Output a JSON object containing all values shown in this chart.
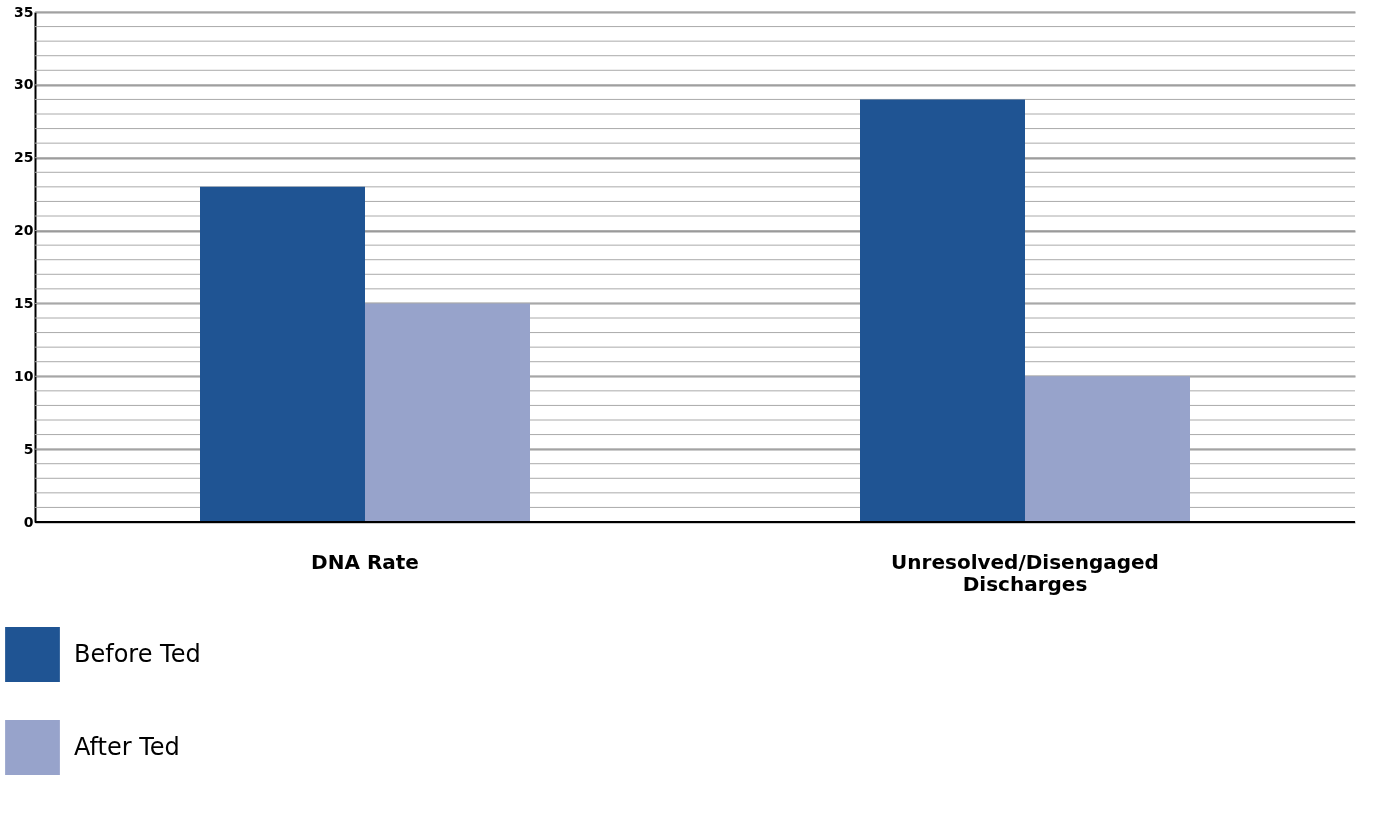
{
  "chart_data": {
    "type": "bar",
    "categories": [
      "DNA Rate",
      "Unresolved/Disengaged Discharges"
    ],
    "series": [
      {
        "name": "Before Ted",
        "color": "#1f5493",
        "values": [
          23,
          29
        ]
      },
      {
        "name": "After Ted",
        "color": "#97a3cb",
        "values": [
          15,
          10
        ]
      }
    ],
    "ylim": [
      0,
      35
    ],
    "yticks": [
      0,
      5,
      10,
      15,
      20,
      25,
      30,
      35
    ],
    "grid": "y",
    "legend": "bottom left"
  }
}
